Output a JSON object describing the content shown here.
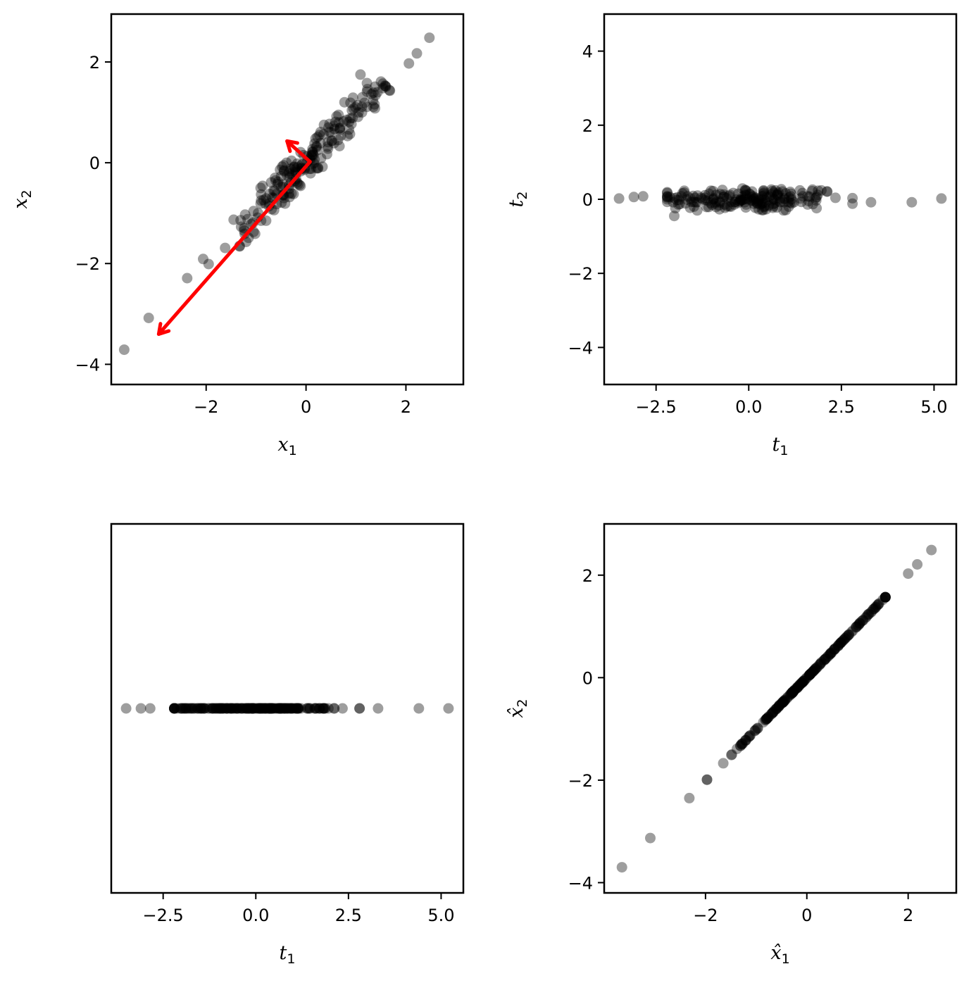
{
  "chart_data": [
    {
      "type": "scatter",
      "id": "original",
      "xlabel": "x",
      "xlabel_sub": "1",
      "ylabel": "x",
      "ylabel_sub": "2",
      "xlim": [
        -3.9,
        3.15
      ],
      "ylim": [
        -4.4,
        2.95
      ],
      "xticks": [
        -2,
        0,
        2
      ],
      "xtick_labels": [
        "−2",
        "0",
        "2"
      ],
      "yticks": [
        -4,
        -2,
        0,
        2
      ],
      "ytick_labels": [
        "−4",
        "−2",
        "0",
        "2"
      ],
      "arrows": [
        {
          "from": [
            0.08,
            0.02
          ],
          "to": [
            -2.95,
            -3.4
          ],
          "color": "#ff0000"
        },
        {
          "from": [
            0.08,
            0.02
          ],
          "to": [
            -0.38,
            0.43
          ],
          "color": "#ff0000"
        }
      ]
    },
    {
      "type": "scatter",
      "id": "scores",
      "xlabel": "t",
      "xlabel_sub": "1",
      "ylabel": "t",
      "ylabel_sub": "2",
      "xlim": [
        -3.9,
        5.6
      ],
      "ylim": [
        -5,
        5
      ],
      "xticks": [
        -2.5,
        0,
        2.5,
        5
      ],
      "xtick_labels": [
        "−2.5",
        "0.0",
        "2.5",
        "5.0"
      ],
      "yticks": [
        -4,
        -2,
        0,
        2,
        4
      ],
      "ytick_labels": [
        "−4",
        "−2",
        "0",
        "2",
        "4"
      ]
    },
    {
      "type": "scatter",
      "id": "first-component",
      "xlabel": "t",
      "xlabel_sub": "1",
      "ylabel": "",
      "ylabel_sub": "",
      "xlim": [
        -3.9,
        5.6
      ],
      "ylim": [
        -1,
        1
      ],
      "xticks": [
        -2.5,
        0,
        2.5,
        5
      ],
      "xtick_labels": [
        "−2.5",
        "0.0",
        "2.5",
        "5.0"
      ],
      "yticks": [],
      "ytick_labels": []
    },
    {
      "type": "scatter",
      "id": "reconstruction",
      "xlabel": "x̂",
      "xlabel_sub": "1",
      "ylabel": "x̂",
      "ylabel_sub": "2",
      "xlim": [
        -4.0,
        2.95
      ],
      "ylim": [
        -4.2,
        3.0
      ],
      "xticks": [
        -2,
        0,
        2
      ],
      "xtick_labels": [
        "−2",
        "0",
        "2"
      ],
      "yticks": [
        -4,
        -2,
        0,
        2
      ],
      "ytick_labels": [
        "−4",
        "−2",
        "0",
        "2"
      ]
    }
  ]
}
